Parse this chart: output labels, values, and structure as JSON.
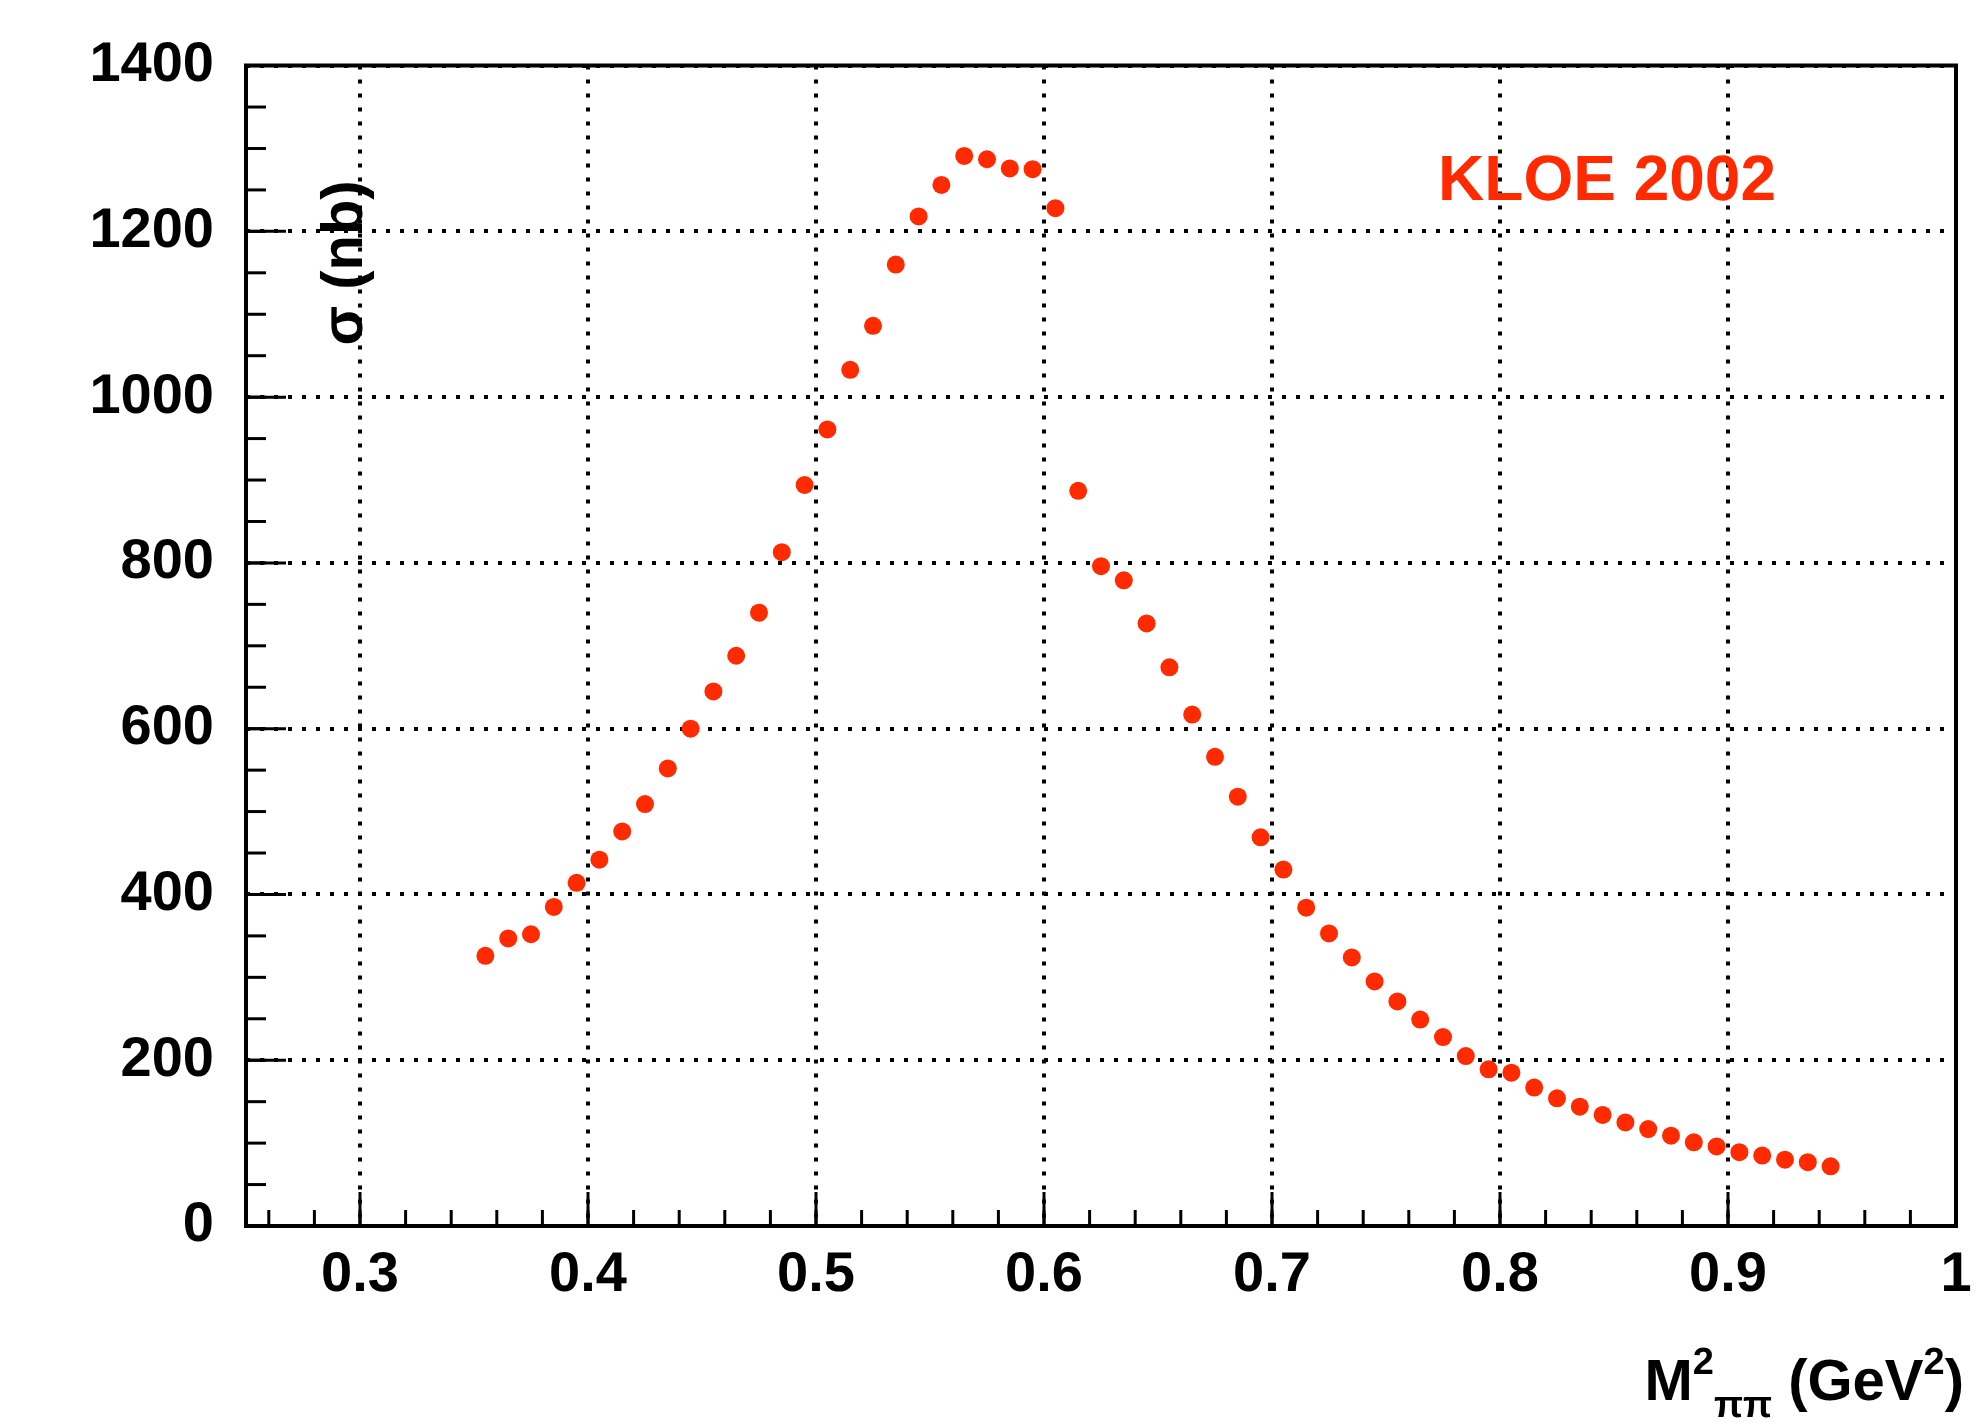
{
  "chart_data": {
    "type": "scatter",
    "xlabel": "M$^{2}$$_{ππ}$ (GeV$^{2}$)",
    "ylabel": "σ (nb)",
    "annotations": [
      "KLOE 2002"
    ],
    "x": [
      0.355,
      0.365,
      0.375,
      0.385,
      0.395,
      0.405,
      0.415,
      0.425,
      0.435,
      0.445,
      0.455,
      0.465,
      0.475,
      0.485,
      0.495,
      0.505,
      0.515,
      0.525,
      0.535,
      0.545,
      0.555,
      0.565,
      0.575,
      0.585,
      0.595,
      0.605,
      0.615,
      0.625,
      0.635,
      0.645,
      0.655,
      0.665,
      0.675,
      0.685,
      0.695,
      0.705,
      0.715,
      0.725,
      0.735,
      0.745,
      0.755,
      0.765,
      0.775,
      0.785,
      0.795,
      0.805,
      0.815,
      0.825,
      0.835,
      0.845,
      0.855,
      0.865,
      0.875,
      0.885,
      0.895,
      0.905,
      0.915,
      0.925,
      0.935,
      0.945
    ],
    "series": [
      {
        "color": "#ff2a00",
        "values": [
          326,
          347,
          352,
          385,
          414,
          442,
          476,
          509,
          552,
          600,
          645,
          688,
          740,
          813,
          894,
          961,
          1033,
          1086,
          1160,
          1218,
          1256,
          1291,
          1287,
          1276,
          1275,
          1228,
          887,
          796,
          779,
          727,
          674,
          617,
          566,
          518,
          469,
          430,
          384,
          353,
          324,
          295,
          271,
          249,
          228,
          205,
          189,
          185,
          167,
          154,
          144,
          134,
          125,
          117,
          109,
          101,
          96,
          89,
          85,
          80,
          77,
          72
        ]
      }
    ],
    "xlim": [
      0.25,
      1
    ],
    "ylim": [
      0,
      1400
    ],
    "xticks": [
      0.3,
      0.4,
      0.5,
      0.6,
      0.7,
      0.8,
      0.9,
      1
    ],
    "yticks": [
      0,
      200,
      400,
      600,
      800,
      1000,
      1200,
      1400
    ],
    "grid": true,
    "legend": false,
    "marker": "circle"
  }
}
